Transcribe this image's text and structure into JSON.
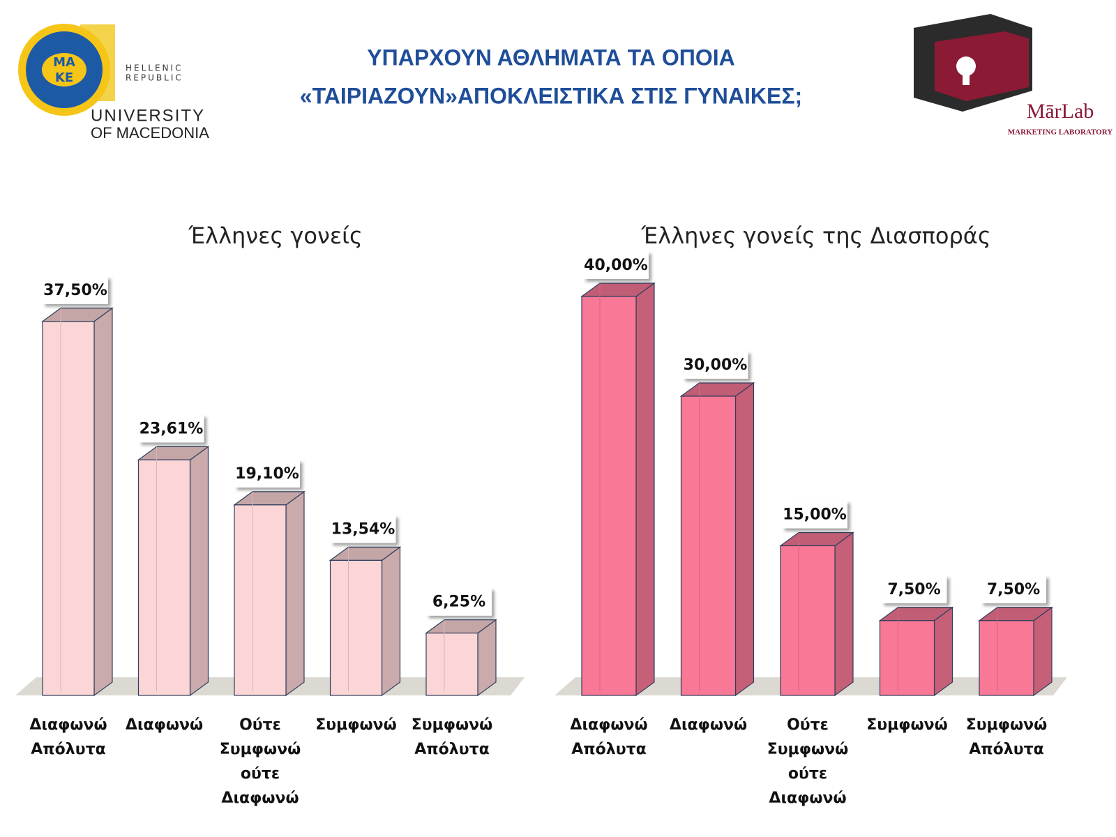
{
  "header": {
    "title_lines": [
      "ΥΠΑΡΧΟΥΝ ΑΘΛΗΜΑΤΑ ΤΑ ΟΠΟΙΑ",
      "«ΤΑΙΡΙΑΖΟΥΝ»ΑΠΟΚΛΕΙΣΤΙΚΑ ΣΤΙΣ ΓΥΝΑΙΚΕΣ;"
    ]
  },
  "logos": {
    "university": {
      "emblem": [
        "ΜΑ",
        "ΚΕ"
      ],
      "country": [
        "HELLENIC",
        "REPUBLIC"
      ],
      "name": [
        "UNIVERSITY",
        "OF MACEDONIA"
      ]
    },
    "marlab": {
      "name": "MārLab",
      "subtitle": "MARKETING LABORATORY"
    }
  },
  "chart_data": [
    {
      "type": "bar",
      "title": "Έλληνες γονείς",
      "categories": [
        "Διαφωνώ Απόλυτα",
        "Διαφωνώ",
        "Ούτε Συμφωνώ ούτε Διαφωνώ",
        "Συμφωνώ",
        "Συμφωνώ Απόλυτα"
      ],
      "values": [
        37.5,
        23.61,
        19.1,
        13.54,
        6.25
      ],
      "value_labels": [
        "37,50%",
        "23,61%",
        "19,10%",
        "13,54%",
        "6,25%"
      ],
      "color": "#fcd5d6"
    },
    {
      "type": "bar",
      "title": "Έλληνες γονείς της Διασποράς",
      "categories": [
        "Διαφωνώ Απόλυτα",
        "Διαφωνώ",
        "Ούτε Συμφωνώ ούτε Διαφωνώ",
        "Συμφωνώ",
        "Συμφωνώ Απόλυτα"
      ],
      "values": [
        40,
        30,
        15,
        7.5,
        7.5
      ],
      "value_labels": [
        "40,00%",
        "30,00%",
        "15,00%",
        "7,50%",
        "7,50%"
      ],
      "color": "#f87896"
    }
  ]
}
